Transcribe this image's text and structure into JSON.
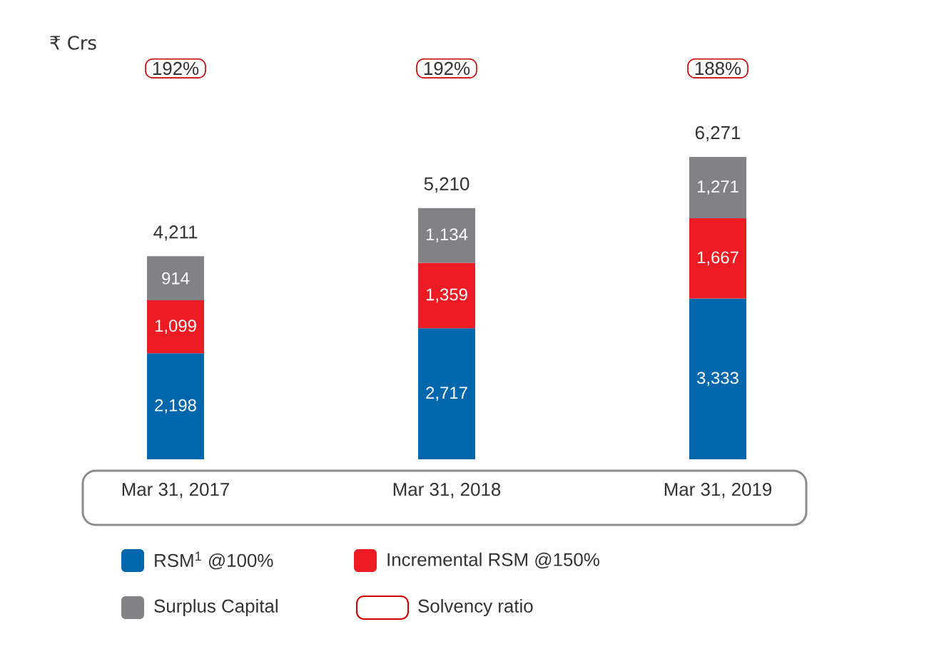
{
  "chart_data": {
    "type": "bar",
    "stacked": true,
    "categories": [
      "Mar 31, 2017",
      "Mar 31, 2018",
      "Mar 31, 2019"
    ],
    "series": [
      {
        "name": "RSM$^{1}$ @100%",
        "color": "#0067ac",
        "values": [
          2198,
          2717,
          3333
        ],
        "value_labels": [
          "2,198",
          "2,717",
          "3,333"
        ]
      },
      {
        "name": "Incremental RSM @150%",
        "color": "#ed1c24",
        "values": [
          1099,
          1359,
          1667
        ],
        "value_labels": [
          "1,099",
          "1,359",
          "1,667"
        ]
      },
      {
        "name": "Surplus Capital",
        "color": "#808285",
        "values": [
          914,
          1134,
          1271
        ],
        "value_labels": [
          "914",
          "1,134",
          "1,271"
        ]
      }
    ],
    "totals": [
      "4,211",
      "5,210",
      "6,271"
    ],
    "annotations": [
      "₹ Crs",
      "192%",
      "192%",
      "188%",
      "Solvency ratio"
    ],
    "legend": "bottom"
  }
}
